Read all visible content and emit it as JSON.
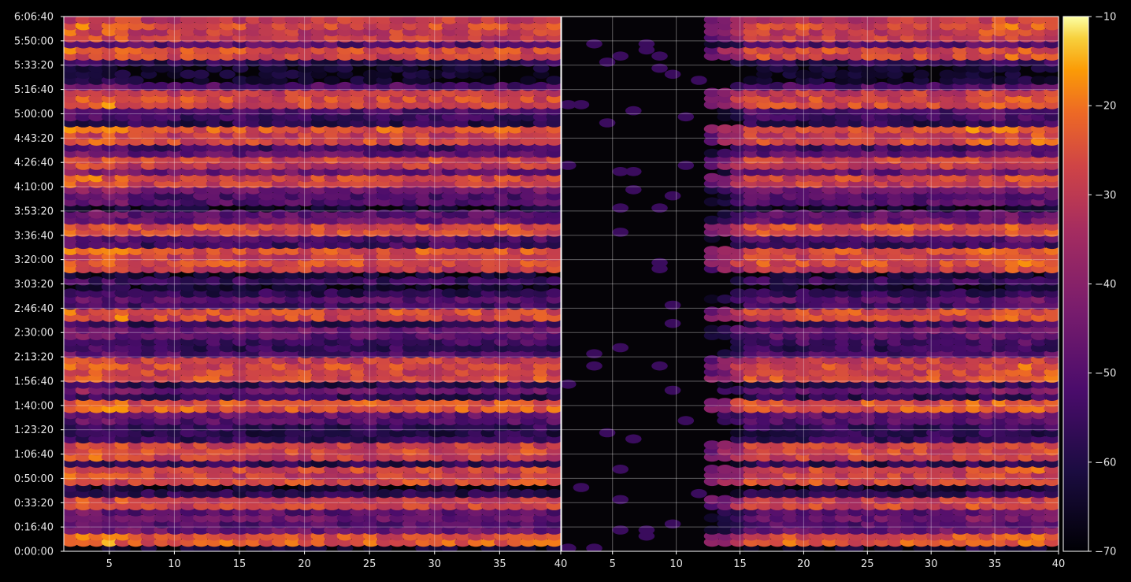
{
  "chart_data": {
    "type": "heatmap",
    "panels": [
      {
        "name": "left",
        "x_ticks": [
          "5",
          "10",
          "15",
          "20",
          "25",
          "30",
          "35"
        ],
        "x_tick_values": [
          5,
          10,
          15,
          20,
          25,
          30,
          35
        ],
        "xlim": [
          1.5,
          39.7
        ],
        "edge_label": "40"
      },
      {
        "name": "right",
        "x_ticks": [
          "5",
          "10",
          "15",
          "20",
          "25",
          "30",
          "35",
          "40"
        ],
        "x_tick_values": [
          5,
          10,
          15,
          20,
          25,
          30,
          35,
          40
        ],
        "xlim": [
          1,
          40
        ]
      }
    ],
    "y_ticks": [
      "0:00:00",
      "0:16:40",
      "0:33:20",
      "0:50:00",
      "1:06:40",
      "1:23:20",
      "1:40:00",
      "1:56:40",
      "2:13:20",
      "2:30:00",
      "2:46:40",
      "3:03:20",
      "3:20:00",
      "3:36:40",
      "3:53:20",
      "4:10:00",
      "4:26:40",
      "4:43:20",
      "5:00:00",
      "5:16:40",
      "5:33:20",
      "5:50:00",
      "6:06:40"
    ],
    "y_tick_seconds": [
      0,
      1000,
      2000,
      3000,
      4000,
      5000,
      6000,
      7000,
      8000,
      9000,
      10000,
      11000,
      12000,
      13000,
      14000,
      15000,
      16000,
      17000,
      18000,
      19000,
      20000,
      21000,
      22000
    ],
    "ylim_seconds": [
      0,
      22000
    ],
    "colorbar": {
      "colormap": "inferno",
      "ticks": [
        "−70",
        "−60",
        "−50",
        "−40",
        "−30",
        "−20",
        "−10"
      ],
      "tick_values": [
        -70,
        -60,
        -50,
        -40,
        -30,
        -20,
        -10
      ],
      "range": [
        -70,
        -10
      ]
    },
    "bright_rows_seconds": [
      300,
      1800,
      3000,
      4000,
      5900,
      7100,
      7600,
      9700,
      11600,
      12100,
      13200,
      15100,
      15800,
      16800,
      17200,
      18500,
      20400,
      21200,
      21500
    ],
    "grid": true
  }
}
